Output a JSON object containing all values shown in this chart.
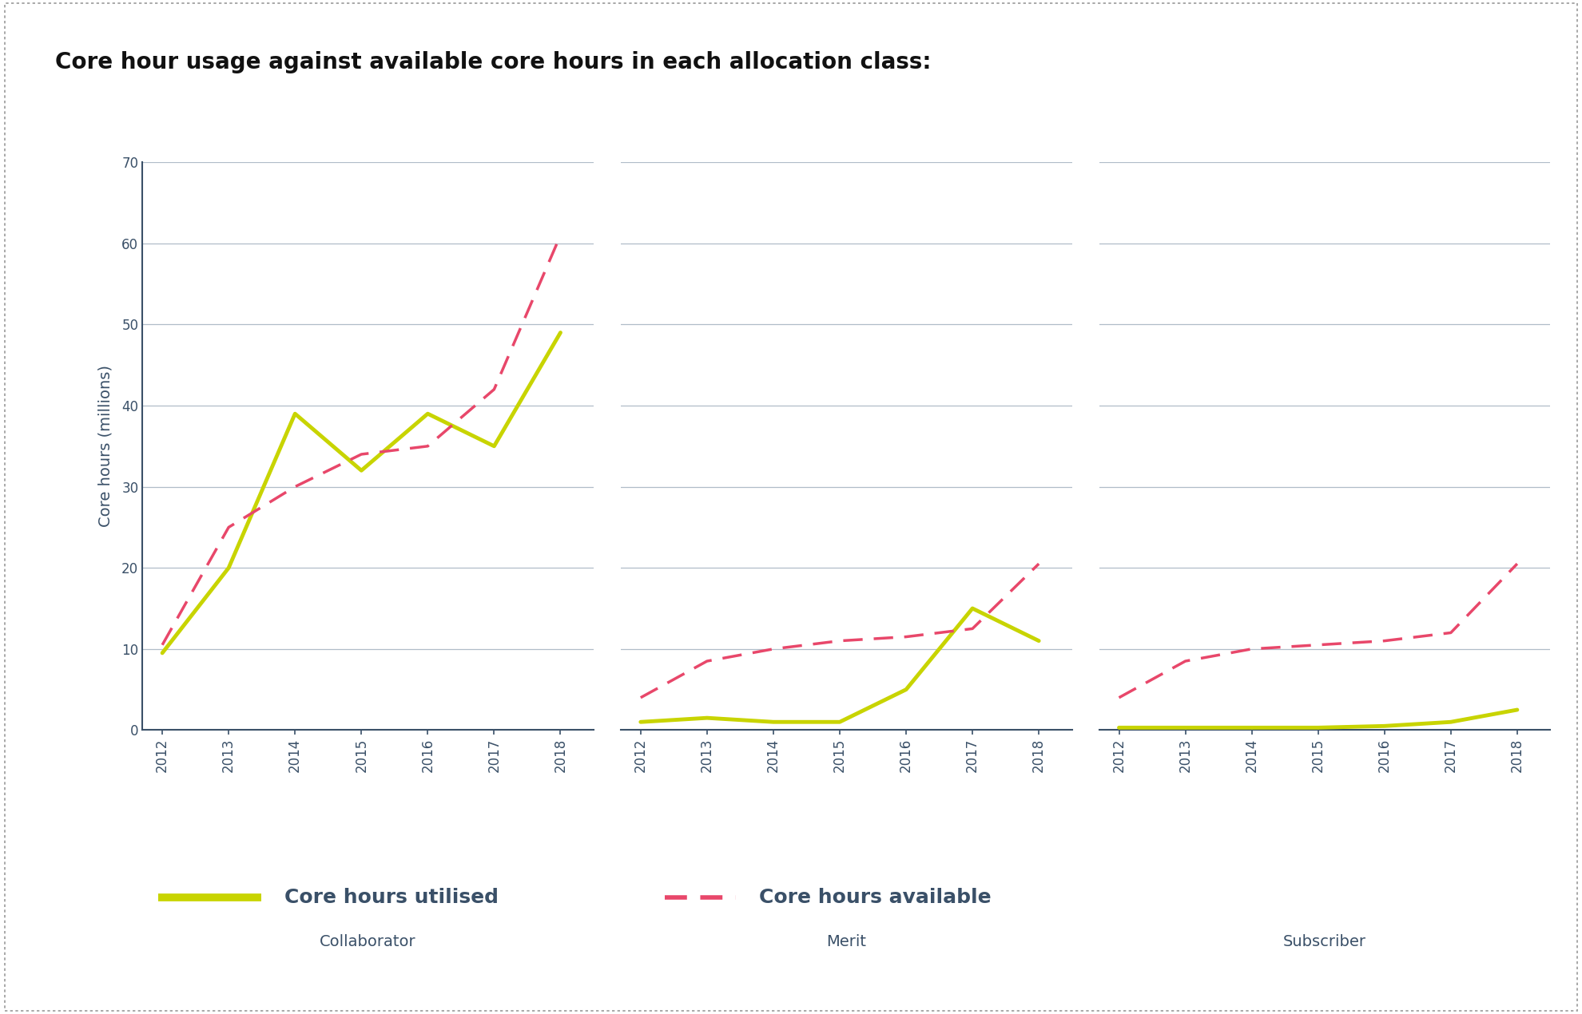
{
  "title": "Core hour usage against available core hours in each allocation class:",
  "ylabel": "Core hours (millions)",
  "years": [
    2012,
    2013,
    2014,
    2015,
    2016,
    2017,
    2018
  ],
  "collaborator": {
    "label": "Collaborator",
    "utilised": [
      9.5,
      20,
      39,
      32,
      39,
      35,
      49
    ],
    "available": [
      10.5,
      25,
      30,
      34,
      35,
      42,
      61
    ]
  },
  "merit": {
    "label": "Merit",
    "utilised": [
      1,
      1.5,
      1,
      1,
      5,
      15,
      11
    ],
    "available": [
      4,
      8.5,
      10,
      11,
      11.5,
      12.5,
      20.5
    ]
  },
  "subscriber": {
    "label": "Subscriber",
    "utilised": [
      0.3,
      0.3,
      0.3,
      0.3,
      0.5,
      1,
      2.5
    ],
    "available": [
      4,
      8.5,
      10,
      10.5,
      11,
      12,
      20.5
    ]
  },
  "utilised_color": "#c8d400",
  "available_color": "#e8476a",
  "ylim": [
    0,
    70
  ],
  "yticks": [
    0,
    10,
    20,
    30,
    40,
    50,
    60,
    70
  ],
  "background_color": "#ffffff",
  "grid_color": "#b0bcc8",
  "axis_color": "#3a5068",
  "title_fontsize": 20,
  "label_fontsize": 14,
  "tick_fontsize": 12,
  "legend_fontsize": 18,
  "subplot_label_fontsize": 14
}
